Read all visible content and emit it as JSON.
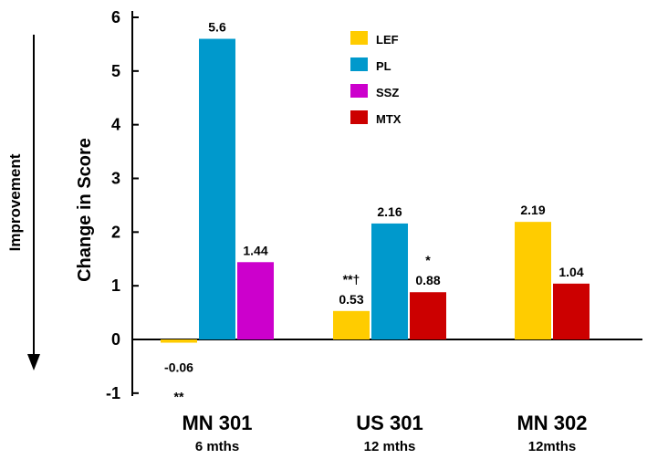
{
  "chart_data": {
    "type": "bar",
    "ylabel": "Change in Score",
    "side_label": "Improvement",
    "ylim": [
      -1,
      6
    ],
    "yticks": [
      "-1",
      "0",
      "1",
      "2",
      "3",
      "4",
      "5",
      "6"
    ],
    "grid": false,
    "legend_position": "top-center",
    "colors": {
      "LEF": "#FFCC00",
      "PL": "#0099CC",
      "SSZ": "#CC00CC",
      "MTX": "#CC0000"
    },
    "groups": [
      {
        "label": "MN 301",
        "sublabel": "6 mths",
        "bars": [
          {
            "series": "LEF",
            "value": -0.06,
            "label": "-0.06",
            "annotation": "**"
          },
          {
            "series": "PL",
            "value": 5.6,
            "label": "5.6",
            "annotation": ""
          },
          {
            "series": "SSZ",
            "value": 1.44,
            "label": "1.44",
            "annotation": ""
          }
        ]
      },
      {
        "label": "US 301",
        "sublabel": "12 mths",
        "bars": [
          {
            "series": "LEF",
            "value": 0.53,
            "label": "0.53",
            "annotation": "**†"
          },
          {
            "series": "PL",
            "value": 2.16,
            "label": "2.16",
            "annotation": ""
          },
          {
            "series": "MTX",
            "value": 0.88,
            "label": "0.88",
            "annotation": "*"
          }
        ]
      },
      {
        "label": "MN 302",
        "sublabel": "12mths",
        "bars": [
          {
            "series": "LEF",
            "value": 2.19,
            "label": "2.19",
            "annotation": ""
          },
          {
            "series": "MTX",
            "value": 1.04,
            "label": "1.04",
            "annotation": ""
          }
        ]
      }
    ],
    "legend": [
      "LEF",
      "PL",
      "SSZ",
      "MTX"
    ]
  }
}
